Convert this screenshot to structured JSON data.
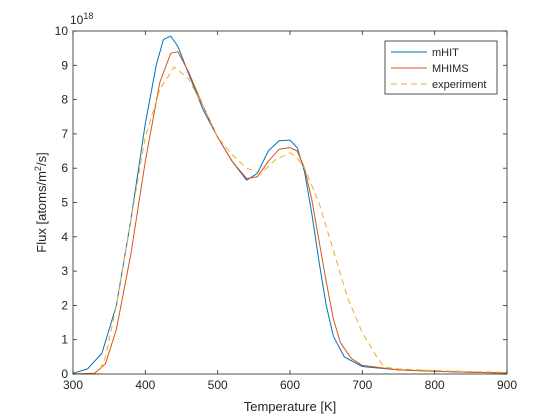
{
  "chart_data": {
    "type": "line",
    "xlabel": "Temperature [K]",
    "ylabel": "Flux [atoms/m",
    "ylabel_sup": "2",
    "ylabel_tail": "/s]",
    "xlim": [
      300,
      900
    ],
    "ylim": [
      0,
      10
    ],
    "y_exponent_base": "10",
    "y_exponent_power": "18",
    "grid": false,
    "legend_position": "top-right",
    "x_ticks": [
      300,
      400,
      500,
      600,
      700,
      800,
      900
    ],
    "y_ticks": [
      0,
      1,
      2,
      3,
      4,
      5,
      6,
      7,
      8,
      9,
      10
    ],
    "series": [
      {
        "name": "mHIT",
        "color": "#0072BD",
        "style": "solid",
        "x": [
          300,
          320,
          340,
          360,
          380,
          400,
          415,
          425,
          435,
          445,
          460,
          480,
          500,
          520,
          540,
          555,
          570,
          585,
          600,
          610,
          620,
          630,
          640,
          650,
          660,
          675,
          700,
          750,
          800,
          850,
          900
        ],
        "y": [
          0.02,
          0.15,
          0.6,
          2.0,
          4.5,
          7.3,
          9.0,
          9.75,
          9.85,
          9.55,
          8.75,
          7.7,
          6.9,
          6.2,
          5.65,
          5.85,
          6.5,
          6.8,
          6.82,
          6.6,
          5.9,
          4.7,
          3.3,
          2.0,
          1.1,
          0.5,
          0.22,
          0.12,
          0.08,
          0.05,
          0.03
        ]
      },
      {
        "name": "MHIMS",
        "color": "#D95319",
        "style": "solid",
        "x": [
          300,
          330,
          345,
          360,
          380,
          400,
          420,
          435,
          445,
          460,
          480,
          500,
          520,
          540,
          555,
          570,
          585,
          600,
          610,
          620,
          630,
          640,
          650,
          660,
          670,
          685,
          700,
          750,
          800,
          850,
          900
        ],
        "y": [
          0,
          0.02,
          0.3,
          1.3,
          3.5,
          6.2,
          8.5,
          9.35,
          9.4,
          8.8,
          7.8,
          6.9,
          6.2,
          5.7,
          5.75,
          6.2,
          6.55,
          6.6,
          6.5,
          6.0,
          5.1,
          3.9,
          2.7,
          1.6,
          0.9,
          0.45,
          0.25,
          0.12,
          0.08,
          0.05,
          0.03
        ]
      },
      {
        "name": "experiment",
        "color": "#EDB120",
        "style": "dashed",
        "x": [
          300,
          335,
          345,
          360,
          380,
          400,
          420,
          440,
          460,
          480,
          500,
          520,
          540,
          560,
          580,
          600,
          610,
          620,
          640,
          660,
          680,
          700,
          720,
          730,
          750,
          800,
          850,
          900
        ],
        "y": [
          0,
          0,
          0.5,
          2.0,
          4.5,
          6.9,
          8.3,
          8.95,
          8.6,
          7.8,
          6.9,
          6.4,
          6.0,
          5.85,
          6.25,
          6.45,
          6.3,
          6.0,
          5.0,
          3.6,
          2.2,
          1.2,
          0.5,
          0.2,
          0.15,
          0.1,
          0.07,
          0.05
        ]
      }
    ]
  }
}
